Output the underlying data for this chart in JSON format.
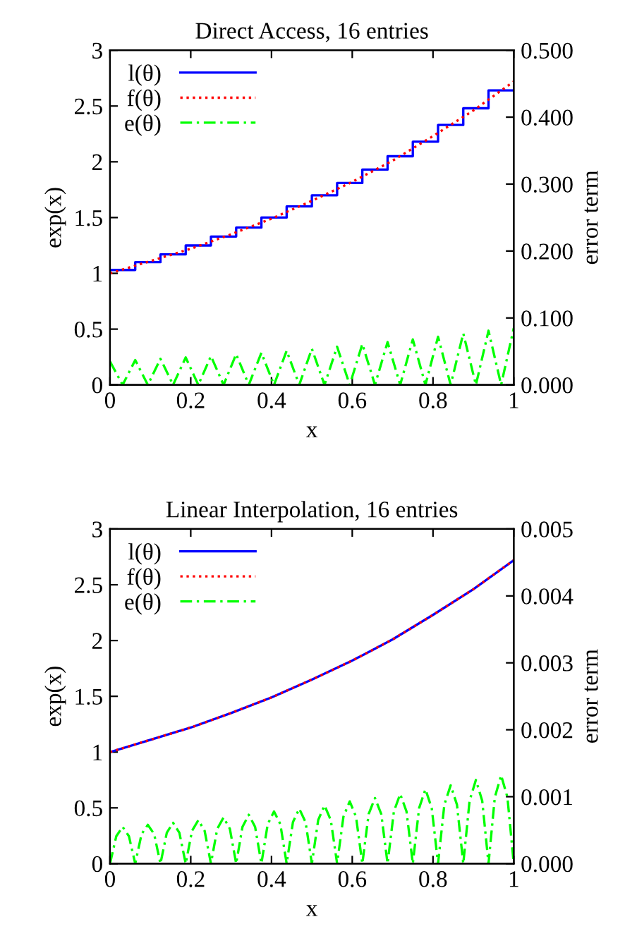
{
  "chart_data": [
    {
      "type": "line",
      "title": "Direct Access, 16 entries",
      "xlabel": "x",
      "ylabel": "exp(x)",
      "y2label": "error term",
      "legend": "top left",
      "grid": false,
      "xlim": [
        0,
        1
      ],
      "xticks": [
        0,
        0.2,
        0.4,
        0.6,
        0.8,
        1
      ],
      "ylim": [
        0,
        3
      ],
      "yticks": [
        0,
        0.5,
        1,
        1.5,
        2,
        2.5,
        3
      ],
      "y2lim": [
        0,
        0.5
      ],
      "y2ticks": [
        {
          "value": 0,
          "label": "0.000"
        },
        {
          "value": 0.1,
          "label": "0.100"
        },
        {
          "value": 0.2,
          "label": "0.200"
        },
        {
          "value": 0.3,
          "label": "0.300"
        },
        {
          "value": 0.4,
          "label": "0.400"
        },
        {
          "value": 0.5,
          "label": "0.500"
        }
      ],
      "series": [
        {
          "name": "l(θ)",
          "type": "step",
          "color": "#0000ff",
          "line_style": "solid",
          "x": [
            0,
            0.0625,
            0.125,
            0.1875,
            0.25,
            0.3125,
            0.375,
            0.4375,
            0.5,
            0.5625,
            0.625,
            0.6875,
            0.75,
            0.8125,
            0.875,
            0.9375,
            1
          ],
          "values": [
            1.03,
            1.1,
            1.17,
            1.25,
            1.33,
            1.41,
            1.5,
            1.6,
            1.7,
            1.81,
            1.93,
            2.05,
            2.18,
            2.33,
            2.48,
            2.64,
            2.64
          ]
        },
        {
          "name": "f(θ)",
          "color": "#ff0000",
          "line_style": "dotted",
          "x": [
            0,
            0.1,
            0.2,
            0.3,
            0.4,
            0.5,
            0.6,
            0.7,
            0.8,
            0.9,
            1
          ],
          "values": [
            1,
            1.11,
            1.22,
            1.35,
            1.49,
            1.65,
            1.82,
            2.01,
            2.23,
            2.46,
            2.72
          ]
        },
        {
          "name": "e(θ)",
          "axis": "y2",
          "color": "#00ff00",
          "line_style": "dashed",
          "x": [
            0,
            0.03125,
            0.0625,
            0.09375,
            0.125,
            0.15625,
            0.1875,
            0.21875,
            0.25,
            0.28125,
            0.3125,
            0.34375,
            0.375,
            0.40625,
            0.4375,
            0.46875,
            0.5,
            0.53125,
            0.5625,
            0.59375,
            0.625,
            0.65625,
            0.6875,
            0.71875,
            0.75,
            0.78125,
            0.8125,
            0.84375,
            0.875,
            0.90625,
            0.9375,
            0.96875,
            1
          ],
          "values": [
            0.035,
            0,
            0.037,
            0,
            0.039,
            0,
            0.041,
            0,
            0.043,
            0,
            0.046,
            0,
            0.048,
            0,
            0.051,
            0,
            0.054,
            0,
            0.057,
            0,
            0.061,
            0,
            0.064,
            0,
            0.068,
            0,
            0.072,
            0,
            0.077,
            0,
            0.081,
            0,
            0.085
          ]
        }
      ]
    },
    {
      "type": "line",
      "title": "Linear Interpolation, 16 entries",
      "xlabel": "x",
      "ylabel": "exp(x)",
      "y2label": "error term",
      "legend": "top left",
      "grid": false,
      "xlim": [
        0,
        1
      ],
      "xticks": [
        0,
        0.2,
        0.4,
        0.6,
        0.8,
        1
      ],
      "ylim": [
        0,
        3
      ],
      "yticks": [
        0,
        0.5,
        1,
        1.5,
        2,
        2.5,
        3
      ],
      "y2lim": [
        0,
        0.005
      ],
      "y2ticks": [
        {
          "value": 0,
          "label": "0.000"
        },
        {
          "value": 0.001,
          "label": "0.001"
        },
        {
          "value": 0.002,
          "label": "0.002"
        },
        {
          "value": 0.003,
          "label": "0.003"
        },
        {
          "value": 0.004,
          "label": "0.004"
        },
        {
          "value": 0.005,
          "label": "0.005"
        }
      ],
      "series": [
        {
          "name": "l(θ)",
          "color": "#0000ff",
          "line_style": "solid",
          "x": [
            0,
            0.1,
            0.2,
            0.3,
            0.4,
            0.5,
            0.6,
            0.7,
            0.8,
            0.9,
            1
          ],
          "values": [
            1,
            1.11,
            1.22,
            1.35,
            1.49,
            1.65,
            1.82,
            2.01,
            2.23,
            2.46,
            2.72
          ]
        },
        {
          "name": "f(θ)",
          "color": "#ff0000",
          "line_style": "dotted",
          "x": [
            0,
            0.1,
            0.2,
            0.3,
            0.4,
            0.5,
            0.6,
            0.7,
            0.8,
            0.9,
            1
          ],
          "values": [
            1,
            1.11,
            1.22,
            1.35,
            1.49,
            1.65,
            1.82,
            2.01,
            2.23,
            2.46,
            2.72
          ]
        },
        {
          "name": "e(θ)",
          "axis": "y2",
          "color": "#00ff00",
          "line_style": "dashed",
          "x": [
            0,
            0.015625,
            0.03125,
            0.046875,
            0.0625,
            0.078125,
            0.09375,
            0.109375,
            0.125,
            0.140625,
            0.15625,
            0.171875,
            0.1875,
            0.203125,
            0.21875,
            0.234375,
            0.25,
            0.265625,
            0.28125,
            0.296875,
            0.3125,
            0.328125,
            0.34375,
            0.359375,
            0.375,
            0.390625,
            0.40625,
            0.421875,
            0.4375,
            0.453125,
            0.46875,
            0.484375,
            0.5,
            0.515625,
            0.53125,
            0.546875,
            0.5625,
            0.578125,
            0.59375,
            0.609375,
            0.625,
            0.640625,
            0.65625,
            0.671875,
            0.6875,
            0.703125,
            0.71875,
            0.734375,
            0.75,
            0.765625,
            0.78125,
            0.796875,
            0.8125,
            0.828125,
            0.84375,
            0.859375,
            0.875,
            0.890625,
            0.90625,
            0.921875,
            0.9375,
            0.953125,
            0.96875,
            0.984375,
            1
          ],
          "values": [
            0,
            0.00041,
            0.00055,
            0.00041,
            0,
            0.00044,
            0.00058,
            0.00044,
            0,
            0.00046,
            0.00061,
            0.00046,
            0,
            0.00049,
            0.00065,
            0.00049,
            0,
            0.00052,
            0.00069,
            0.00052,
            0,
            0.00055,
            0.00073,
            0.00055,
            0,
            0.00059,
            0.00078,
            0.00059,
            0,
            0.00062,
            0.00082,
            0.00062,
            0,
            0.00065,
            0.00087,
            0.00065,
            0,
            0.0007,
            0.00093,
            0.0007,
            0,
            0.00074,
            0.00098,
            0.00074,
            0,
            0.00078,
            0.00104,
            0.00078,
            0,
            0.00083,
            0.00111,
            0.00083,
            0,
            0.00088,
            0.00117,
            0.00088,
            0,
            0.00094,
            0.00125,
            0.00094,
            0,
            0.00099,
            0.00132,
            0.00099,
            0
          ]
        }
      ]
    }
  ]
}
